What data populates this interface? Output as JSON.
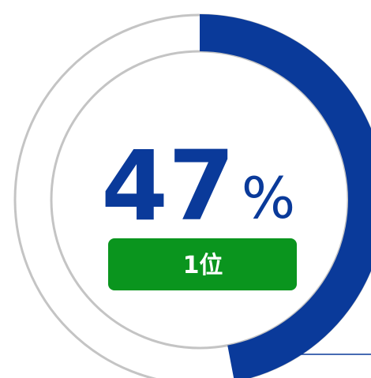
{
  "chart_data": {
    "type": "donut",
    "values": [
      47
    ],
    "unit": "%",
    "ylim": [
      0,
      100
    ],
    "color": "#0a3a9a",
    "rank_label": "1位",
    "rank_color": "#0a951e"
  }
}
